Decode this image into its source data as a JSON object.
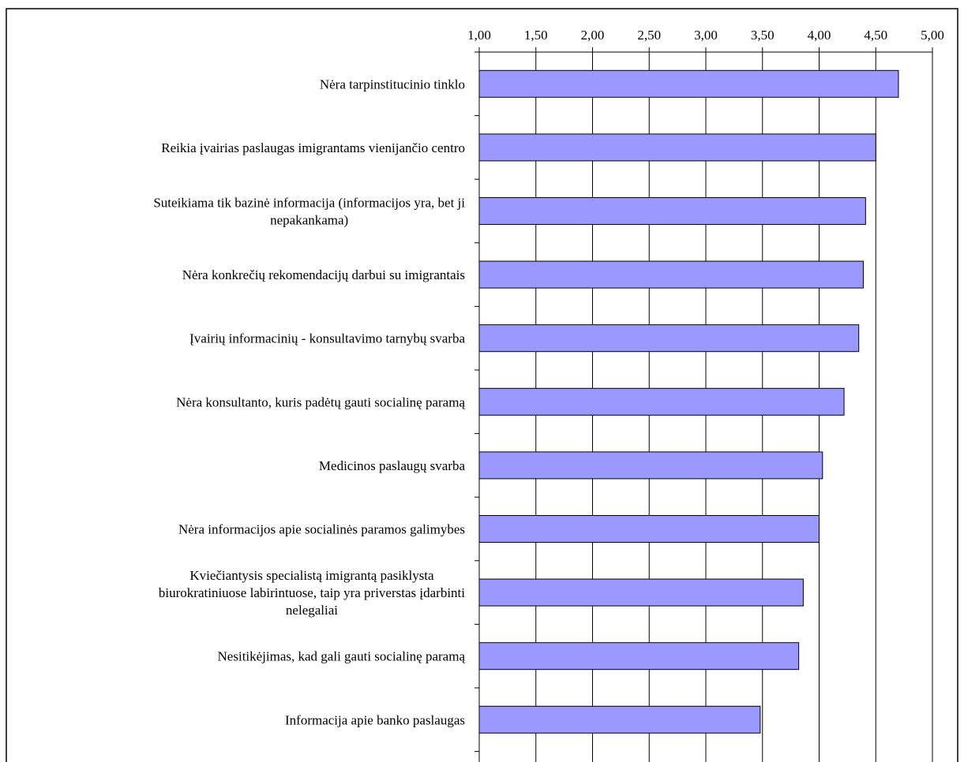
{
  "chart_data": {
    "type": "bar",
    "orientation": "horizontal",
    "categories": [
      "Nėra tarpinstitucinio tinklo",
      "Reikia įvairias paslaugas imigrantams vienijančio centro",
      "Suteikiama tik bazinė informacija (informacijos yra, bet ji nepakankama)",
      "Nėra konkrečių rekomendacijų darbui su imigrantais",
      "Įvairių informacinių - konsultavimo tarnybų svarba",
      "Nėra konsultanto, kuris padėtų gauti socialinę paramą",
      "Medicinos paslaugų svarba",
      "Nėra informacijos apie socialinės paramos galimybes",
      "Kviečiantysis specialistą imigrantą pasiklysta biurokratiniuose labirintuose, taip yra priverstas įdarbinti nelegaliai",
      "Nesitikėjimas, kad gali gauti socialinę paramą",
      "Informacija apie banko paslaugas"
    ],
    "category_lines": [
      [
        "Nėra tarpinstitucinio tinklo"
      ],
      [
        "Reikia įvairias paslaugas imigrantams vienijančio centro"
      ],
      [
        "Suteikiama tik bazinė informacija (informacijos yra, bet ji",
        "nepakankama)"
      ],
      [
        "Nėra konkrečių rekomendacijų darbui su imigrantais"
      ],
      [
        "Įvairių informacinių - konsultavimo tarnybų svarba"
      ],
      [
        "Nėra konsultanto, kuris padėtų gauti socialinę paramą"
      ],
      [
        "Medicinos paslaugų svarba"
      ],
      [
        "Nėra informacijos apie socialinės paramos galimybes"
      ],
      [
        "Kviečiantysis specialistą imigrantą pasiklysta",
        "biurokratiniuose labirintuose, taip yra priverstas įdarbinti",
        "nelegaliai"
      ],
      [
        "Nesitikėjimas, kad gali gauti socialinę paramą"
      ],
      [
        "Informacija apie banko paslaugas"
      ]
    ],
    "values": [
      4.7,
      4.5,
      4.41,
      4.39,
      4.35,
      4.22,
      4.03,
      4.0,
      3.86,
      3.82,
      3.48
    ],
    "xlim": [
      1.0,
      5.0
    ],
    "xticks": [
      1.0,
      1.5,
      2.0,
      2.5,
      3.0,
      3.5,
      4.0,
      4.5,
      5.0
    ],
    "xtick_labels": [
      "1,00",
      "1,50",
      "2,00",
      "2,50",
      "3,00",
      "3,50",
      "4,00",
      "4,50",
      "5,00"
    ],
    "xaxis_position": "top",
    "grid": true,
    "bar_color": "#9999ff",
    "title": "",
    "xlabel": "",
    "ylabel": ""
  }
}
